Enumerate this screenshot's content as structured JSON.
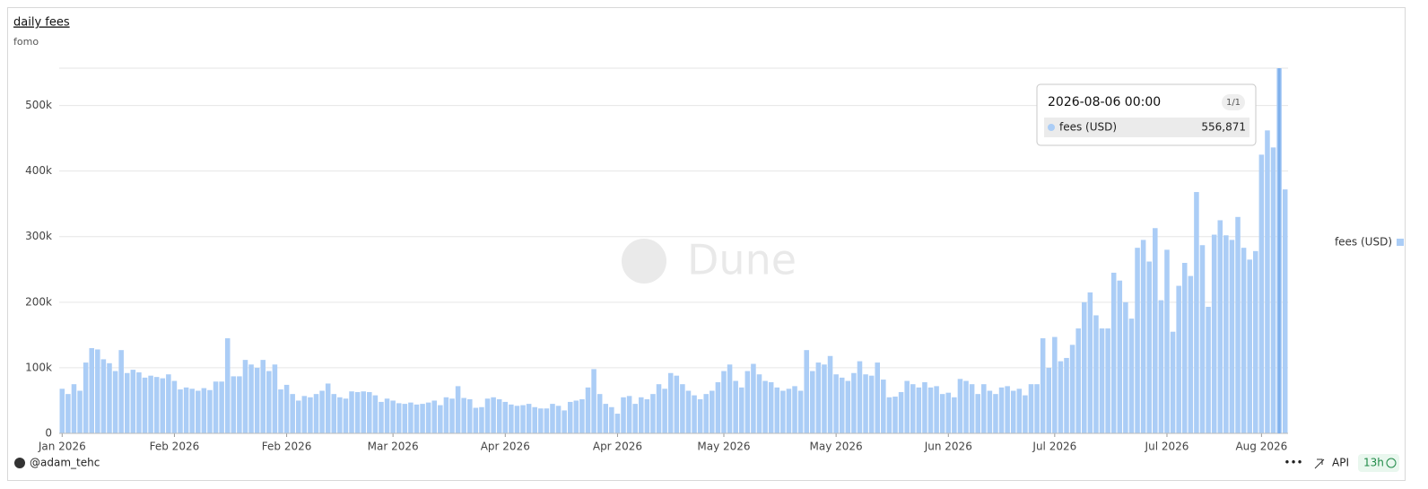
{
  "chart_data": {
    "type": "bar",
    "title": "daily fees",
    "subtitle": "fomo",
    "categories": [
      "Jan 2026",
      null,
      null,
      null,
      null,
      null,
      null,
      null,
      null,
      null,
      null,
      null,
      null,
      null,
      null,
      null,
      null,
      null,
      null,
      "Feb 2026",
      null,
      null,
      null,
      null,
      null,
      null,
      null,
      null,
      null,
      null,
      null,
      null,
      null,
      null,
      null,
      null,
      null,
      null,
      "Feb 2026",
      null,
      null,
      null,
      null,
      null,
      null,
      null,
      null,
      null,
      null,
      null,
      null,
      null,
      null,
      null,
      null,
      null,
      "Mar 2026",
      null,
      null,
      null,
      null,
      null,
      null,
      null,
      null,
      null,
      null,
      null,
      null,
      null,
      null,
      null,
      null,
      null,
      null,
      "Apr 2026",
      null,
      null,
      null,
      null,
      null,
      null,
      null,
      null,
      null,
      null,
      null,
      null,
      null,
      null,
      null,
      null,
      null,
      null,
      "Apr 2026",
      null,
      null,
      null,
      null,
      null,
      null,
      null,
      null,
      null,
      null,
      null,
      null,
      null,
      null,
      null,
      null,
      null,
      "May 2026",
      null,
      null,
      null,
      null,
      null,
      null,
      null,
      null,
      null,
      null,
      null,
      null,
      null,
      null,
      null,
      null,
      null,
      null,
      "May 2026",
      null,
      null,
      null,
      null,
      null,
      null,
      null,
      null,
      null,
      null,
      null,
      null,
      null,
      null,
      null,
      null,
      null,
      null,
      "Jun 2026",
      null,
      null,
      null,
      null,
      null,
      null,
      null,
      null,
      null,
      null,
      null,
      null,
      null,
      null,
      null,
      null,
      null,
      "Jul 2026",
      null,
      null,
      null,
      null,
      null,
      null,
      null,
      null,
      null,
      null,
      null,
      null,
      null,
      null,
      null,
      null,
      null,
      null,
      "Jul 2026",
      null,
      null,
      null,
      null,
      null,
      null,
      null,
      null,
      null,
      null,
      null,
      null,
      null,
      null,
      null,
      "Aug 2026",
      null,
      null,
      null,
      null
    ],
    "series": [
      {
        "name": "fees (USD)",
        "color": "#abcdf6",
        "values": [
          68000,
          60000,
          75000,
          65000,
          108000,
          130000,
          128000,
          113000,
          107000,
          95000,
          127000,
          92000,
          97000,
          93000,
          85000,
          88000,
          86000,
          84000,
          90000,
          80000,
          67000,
          70000,
          68000,
          65000,
          69000,
          66000,
          79000,
          79000,
          145000,
          87000,
          87000,
          112000,
          105000,
          100000,
          112000,
          95000,
          105000,
          67000,
          74000,
          60000,
          50000,
          57000,
          55000,
          60000,
          65000,
          76000,
          60000,
          55000,
          53000,
          64000,
          63000,
          64000,
          63000,
          58000,
          48000,
          53000,
          50000,
          46000,
          45000,
          47000,
          44000,
          45000,
          47000,
          50000,
          43000,
          55000,
          53000,
          72000,
          54000,
          52000,
          39000,
          40000,
          53000,
          55000,
          52000,
          48000,
          44000,
          42000,
          43000,
          45000,
          40000,
          38000,
          38000,
          45000,
          42000,
          35000,
          48000,
          50000,
          52000,
          70000,
          98000,
          60000,
          45000,
          40000,
          30000,
          55000,
          57000,
          45000,
          55000,
          52000,
          60000,
          75000,
          68000,
          92000,
          88000,
          75000,
          65000,
          58000,
          52000,
          60000,
          65000,
          78000,
          95000,
          105000,
          80000,
          70000,
          95000,
          106000,
          90000,
          80000,
          78000,
          70000,
          65000,
          68000,
          72000,
          65000,
          127000,
          95000,
          108000,
          105000,
          118000,
          90000,
          85000,
          80000,
          92000,
          110000,
          90000,
          88000,
          108000,
          82000,
          55000,
          56000,
          63000,
          80000,
          75000,
          70000,
          78000,
          70000,
          72000,
          60000,
          62000,
          55000,
          83000,
          80000,
          75000,
          60000,
          75000,
          65000,
          60000,
          70000,
          72000,
          65000,
          68000,
          58000,
          75000,
          75000,
          145000,
          100000,
          147000,
          110000,
          115000,
          135000,
          160000,
          200000,
          215000,
          180000,
          160000,
          160000,
          245000,
          233000,
          200000,
          175000,
          283000,
          295000,
          262000,
          313000,
          203000,
          280000,
          155000,
          225000,
          260000,
          240000,
          368000,
          287000,
          193000,
          303000,
          325000,
          302000,
          295000,
          330000,
          283000,
          265000,
          278000,
          425000,
          462000,
          436000,
          556871,
          372000
        ]
      }
    ],
    "ylim": [
      0,
      556871
    ],
    "yticks": [
      0,
      {
        "value": 100000,
        "label": "100k"
      },
      {
        "value": 200000,
        "label": "200k"
      },
      {
        "value": 300000,
        "label": "300k"
      },
      {
        "value": 400000,
        "label": "400k"
      },
      {
        "value": 500000,
        "label": "500k"
      }
    ],
    "grid": true,
    "legend": "right",
    "tooltip": {
      "date": "2026-08-06 00:00",
      "page": "1/1",
      "series": "fees (USD)",
      "value": {
        "value": 556871,
        "label": "556,871"
      },
      "index": 206
    }
  },
  "watermark": "Dune",
  "footer": {
    "author": "@adam_tehc",
    "api": "API",
    "age": "13h"
  }
}
